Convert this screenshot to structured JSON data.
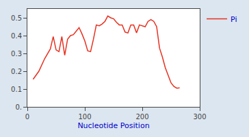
{
  "chart_data": {
    "type": "line",
    "xlabel": "Nucleotide Position",
    "x": [
      10,
      20,
      30,
      40,
      45,
      50,
      55,
      60,
      65,
      70,
      75,
      80,
      85,
      90,
      95,
      100,
      105,
      110,
      115,
      120,
      125,
      130,
      135,
      140,
      145,
      150,
      155,
      160,
      165,
      170,
      175,
      180,
      185,
      190,
      195,
      200,
      205,
      210,
      215,
      220,
      225,
      230,
      235,
      240,
      245,
      250,
      255,
      260,
      265
    ],
    "series": [
      {
        "name": "Pi",
        "color": "#e83020",
        "values": [
          0.155,
          0.2,
          0.27,
          0.325,
          0.395,
          0.32,
          0.31,
          0.395,
          0.29,
          0.38,
          0.4,
          0.405,
          0.425,
          0.445,
          0.41,
          0.37,
          0.315,
          0.31,
          0.38,
          0.46,
          0.455,
          0.465,
          0.48,
          0.51,
          0.5,
          0.495,
          0.475,
          0.46,
          0.46,
          0.42,
          0.415,
          0.46,
          0.46,
          0.415,
          0.46,
          0.455,
          0.45,
          0.48,
          0.49,
          0.48,
          0.45,
          0.33,
          0.28,
          0.22,
          0.18,
          0.135,
          0.115,
          0.105,
          0.107
        ]
      }
    ],
    "xlim": [
      0,
      300
    ],
    "ylim": [
      0,
      0.55
    ],
    "xticks": [
      0,
      100,
      200,
      300
    ],
    "yticks": [
      {
        "value": 0,
        "label": "0."
      },
      0.1,
      0.2,
      0.3,
      0.4,
      0.5
    ],
    "grid": false,
    "legend": "right"
  }
}
